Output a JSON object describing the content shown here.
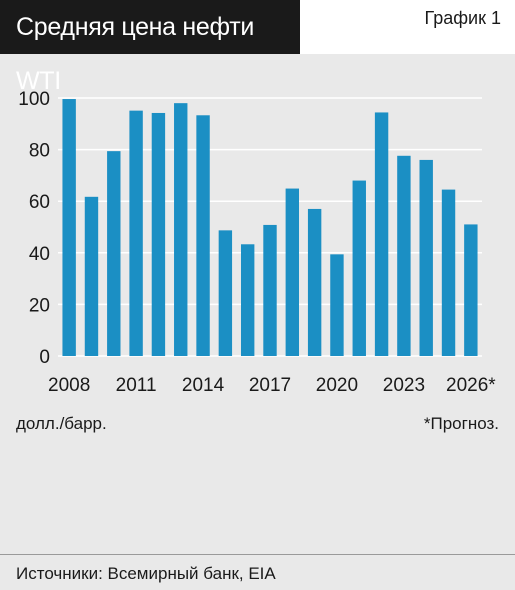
{
  "header": {
    "title": "Средняя цена нефти WTI",
    "label": "График 1"
  },
  "footer": {
    "unit": "долл./барр.",
    "forecast_note": "*Прогноз.",
    "source": "Источники: Всемирный банк, EIA"
  },
  "colors": {
    "bar": "#1b8fc4",
    "grid": "#ffffff",
    "background": "#e9e9e9"
  },
  "chart_data": {
    "type": "bar",
    "categories": [
      "2008",
      "2009",
      "2010",
      "2011",
      "2012",
      "2013",
      "2014",
      "2015",
      "2016",
      "2017",
      "2018",
      "2019",
      "2020",
      "2021",
      "2022",
      "2023",
      "2024",
      "2025",
      "2026*"
    ],
    "values": [
      99.6,
      61.7,
      79.4,
      95.1,
      94.2,
      98.0,
      93.3,
      48.7,
      43.3,
      50.8,
      64.9,
      57.0,
      39.4,
      68.0,
      94.4,
      77.6,
      76.0,
      64.5,
      51.0
    ],
    "tick_labels": [
      "2008",
      "2011",
      "2014",
      "2017",
      "2020",
      "2023",
      "2026*"
    ],
    "tick_categories": [
      "2008",
      "2011",
      "2014",
      "2017",
      "2020",
      "2023",
      "2026*"
    ],
    "ylim": [
      0,
      100
    ],
    "yticks": [
      0,
      20,
      40,
      60,
      80,
      100
    ],
    "grid": true
  }
}
